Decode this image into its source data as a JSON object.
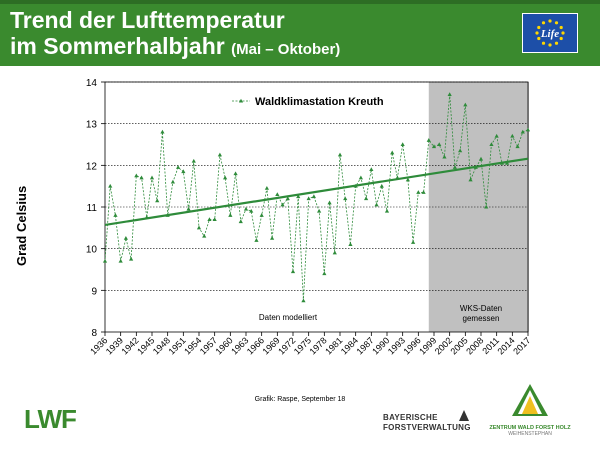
{
  "header": {
    "title_line1": "Trend der Lufttemperatur",
    "title_line2": "im Sommerhalbjahr",
    "title_suffix": "(Mai – Oktober)",
    "background_color": "#3a8a2e"
  },
  "eu_logo": {
    "icon": "eu-life-logo-icon",
    "text": "Life"
  },
  "chart_data": {
    "type": "line",
    "title": "",
    "legend": {
      "label": "Waldklimastation Kreuth",
      "placement": "top-left"
    },
    "ylabel": "Grad Celsius",
    "xlabel": "",
    "ylim": [
      8,
      14
    ],
    "yticks": [
      8,
      9,
      10,
      11,
      12,
      13,
      14
    ],
    "xlim": [
      1936,
      2017
    ],
    "xticks": [
      1936,
      1939,
      1942,
      1945,
      1948,
      1951,
      1954,
      1957,
      1960,
      1963,
      1966,
      1969,
      1972,
      1975,
      1978,
      1981,
      1984,
      1987,
      1990,
      1993,
      1996,
      1999,
      2002,
      2005,
      2008,
      2011,
      2014,
      2017
    ],
    "grid": true,
    "series_color": "#2e8b3a",
    "series": [
      {
        "name": "Waldklimastation Kreuth",
        "x": [
          1936,
          1937,
          1938,
          1939,
          1940,
          1941,
          1942,
          1943,
          1944,
          1945,
          1946,
          1947,
          1948,
          1949,
          1950,
          1951,
          1952,
          1953,
          1954,
          1955,
          1956,
          1957,
          1958,
          1959,
          1960,
          1961,
          1962,
          1963,
          1964,
          1965,
          1966,
          1967,
          1968,
          1969,
          1970,
          1971,
          1972,
          1973,
          1974,
          1975,
          1976,
          1977,
          1978,
          1979,
          1980,
          1981,
          1982,
          1983,
          1984,
          1985,
          1986,
          1987,
          1988,
          1989,
          1990,
          1991,
          1992,
          1993,
          1994,
          1995,
          1996,
          1997,
          1998,
          1999,
          2000,
          2001,
          2002,
          2003,
          2004,
          2005,
          2006,
          2007,
          2008,
          2009,
          2010,
          2011,
          2012,
          2013,
          2014,
          2015,
          2016,
          2017
        ],
        "values": [
          9.7,
          11.5,
          10.8,
          9.7,
          10.25,
          9.75,
          11.75,
          11.7,
          10.75,
          11.7,
          11.15,
          12.8,
          10.8,
          11.6,
          11.95,
          11.85,
          10.95,
          12.1,
          10.5,
          10.3,
          10.7,
          10.7,
          12.25,
          11.7,
          10.8,
          11.8,
          10.65,
          10.95,
          10.9,
          10.2,
          10.8,
          11.45,
          10.25,
          11.3,
          11.05,
          11.2,
          9.45,
          11.25,
          8.75,
          11.2,
          11.25,
          10.9,
          9.4,
          11.1,
          9.9,
          12.25,
          11.2,
          10.1,
          11.5,
          11.7,
          11.2,
          11.9,
          11.05,
          11.5,
          10.9,
          12.3,
          11.7,
          12.5,
          11.65,
          10.15,
          11.35,
          11.35,
          12.6,
          12.45,
          12.5,
          12.2,
          13.7,
          11.95,
          12.35,
          13.45,
          11.65,
          11.95,
          12.15,
          11.0,
          12.5,
          12.7,
          12.05,
          12.05,
          12.7,
          12.45,
          12.8,
          12.85
        ]
      }
    ],
    "trend": {
      "start": [
        1936,
        10.57
      ],
      "end": [
        2017,
        12.16
      ],
      "color": "#2e8b3a"
    },
    "shaded_region": {
      "from": 1998,
      "to": 2017,
      "color": "#c0c0c0"
    },
    "annotations": {
      "modelled": "Daten modelliert",
      "measured_line1": "WKS-Daten",
      "measured_line2": "gemessen"
    }
  },
  "credit": "Grafik: Raspe, September 18",
  "footer": {
    "lwf_logo": "LWF",
    "bfv_line1": "BAYERISCHE",
    "bfv_line2": "FORSTVERWALTUNG",
    "zwfh_name": "ZENTRUM WALD FORST HOLZ",
    "zwfh_sub": "WEIHENSTEPHAN"
  }
}
